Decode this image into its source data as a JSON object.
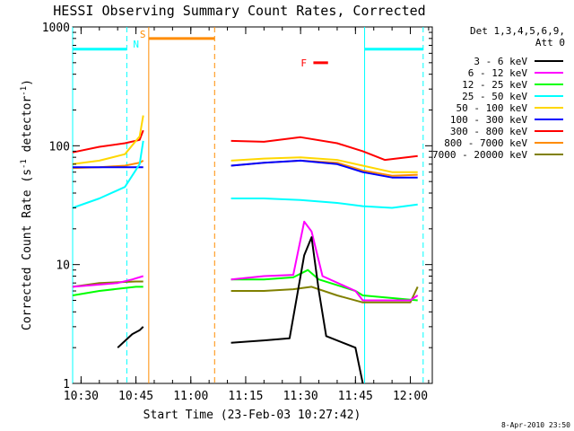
{
  "chart_data": {
    "type": "line",
    "title": "HESSI Observing Summary Count Rates, Corrected",
    "xlabel": "Start Time (23-Feb-03 10:27:42)",
    "ylabel_main": "Corrected Count Rate (s",
    "ylabel_sup1": "-1",
    "ylabel_mid": " detector",
    "ylabel_sup2": "-1",
    "ylabel_end": ")",
    "yscale": "log",
    "xlim": [
      "10:27:42",
      "12:06:00"
    ],
    "ylim": [
      1,
      1000
    ],
    "x_ticks": [
      "10:30",
      "10:45",
      "11:00",
      "11:15",
      "11:30",
      "11:45",
      "12:00"
    ],
    "y_ticks": [
      {
        "value": 1,
        "label": "1"
      },
      {
        "value": 10,
        "label": "10"
      },
      {
        "value": 100,
        "label": "100"
      },
      {
        "value": 1000,
        "label": "1000"
      }
    ],
    "legend_header": [
      "Det 1,3,4,5,6,9,",
      "Att 0"
    ],
    "legend_position": "right",
    "flag_labels": {
      "night": "N",
      "saa": "S",
      "flare": "F"
    },
    "series": [
      {
        "name": "3 - 6 keV",
        "color": "#000000",
        "points": [
          [
            "10:40",
            2
          ],
          [
            "10:44",
            2.6
          ],
          [
            "10:46",
            2.8
          ],
          [
            "10:47",
            3.0
          ],
          [
            "11:11",
            2.2
          ],
          [
            "11:20",
            2.3
          ],
          [
            "11:27",
            2.4
          ],
          [
            "11:31",
            12
          ],
          [
            "11:33",
            17
          ],
          [
            "11:35",
            6
          ],
          [
            "11:37",
            2.5
          ],
          [
            "11:45",
            2
          ],
          [
            "11:47",
            1
          ]
        ]
      },
      {
        "name": "6 - 12 keV",
        "color": "#ff00ff",
        "points": [
          [
            "10:27:42",
            6.5
          ],
          [
            "10:40",
            7
          ],
          [
            "10:44",
            7.5
          ],
          [
            "10:47",
            8.0
          ],
          [
            "11:11",
            7.5
          ],
          [
            "11:20",
            8.0
          ],
          [
            "11:28",
            8.2
          ],
          [
            "11:31",
            23
          ],
          [
            "11:33",
            19
          ],
          [
            "11:36",
            8
          ],
          [
            "11:45",
            6
          ],
          [
            "11:47",
            5
          ],
          [
            "12:00",
            5
          ],
          [
            "12:02",
            5.5
          ]
        ]
      },
      {
        "name": "12 - 25 keV",
        "color": "#00ff00",
        "points": [
          [
            "10:27:42",
            5.5
          ],
          [
            "10:35",
            6.0
          ],
          [
            "10:45",
            6.5
          ],
          [
            "10:47",
            6.5
          ],
          [
            "11:11",
            7.5
          ],
          [
            "11:20",
            7.5
          ],
          [
            "11:28",
            7.8
          ],
          [
            "11:32",
            9
          ],
          [
            "11:35",
            7.5
          ],
          [
            "11:45",
            6.0
          ],
          [
            "11:47",
            5.5
          ],
          [
            "12:02",
            5.0
          ]
        ]
      },
      {
        "name": "25 - 50 keV",
        "color": "#00ffff",
        "points": [
          [
            "10:27:42",
            30
          ],
          [
            "10:35",
            36
          ],
          [
            "10:42",
            45
          ],
          [
            "10:46",
            70
          ],
          [
            "10:47",
            110
          ],
          [
            "11:11",
            36
          ],
          [
            "11:20",
            36
          ],
          [
            "11:30",
            35
          ],
          [
            "11:40",
            33
          ],
          [
            "11:47",
            31
          ],
          [
            "11:55",
            30
          ],
          [
            "12:02",
            32
          ]
        ]
      },
      {
        "name": "50 - 100 keV",
        "color": "#ffd700",
        "points": [
          [
            "10:27:42",
            70
          ],
          [
            "10:35",
            75
          ],
          [
            "10:42",
            85
          ],
          [
            "10:46",
            120
          ],
          [
            "10:47",
            180
          ],
          [
            "11:11",
            75
          ],
          [
            "11:20",
            78
          ],
          [
            "11:30",
            80
          ],
          [
            "11:40",
            76
          ],
          [
            "11:47",
            68
          ],
          [
            "11:55",
            60
          ],
          [
            "12:02",
            60
          ]
        ]
      },
      {
        "name": "100 - 300 keV",
        "color": "#0000ff",
        "points": [
          [
            "10:27:42",
            66
          ],
          [
            "10:35",
            66
          ],
          [
            "10:42",
            66
          ],
          [
            "10:47",
            66
          ],
          [
            "11:11",
            68
          ],
          [
            "11:20",
            72
          ],
          [
            "11:30",
            75
          ],
          [
            "11:40",
            70
          ],
          [
            "11:47",
            60
          ],
          [
            "11:55",
            54
          ],
          [
            "12:02",
            54
          ]
        ]
      },
      {
        "name": "300 - 800 keV",
        "color": "#ff0000",
        "points": [
          [
            "10:27:42",
            88
          ],
          [
            "10:35",
            98
          ],
          [
            "10:42",
            105
          ],
          [
            "10:46",
            112
          ],
          [
            "10:47",
            135
          ],
          [
            "11:11",
            110
          ],
          [
            "11:20",
            108
          ],
          [
            "11:30",
            118
          ],
          [
            "11:40",
            105
          ],
          [
            "11:47",
            90
          ],
          [
            "11:53",
            76
          ],
          [
            "12:02",
            82
          ]
        ]
      },
      {
        "name": "800 - 7000 keV",
        "color": "#ff8c00",
        "points": [
          [
            "10:27:42",
            65
          ],
          [
            "10:35",
            66
          ],
          [
            "10:42",
            68
          ],
          [
            "10:46",
            72
          ],
          [
            "10:47",
            75
          ],
          [
            "11:11",
            68
          ],
          [
            "11:20",
            72
          ],
          [
            "11:30",
            75
          ],
          [
            "11:40",
            72
          ],
          [
            "11:47",
            62
          ],
          [
            "11:55",
            56
          ],
          [
            "12:02",
            57
          ]
        ]
      },
      {
        "name": "7000 - 20000 keV",
        "color": "#808000",
        "points": [
          [
            "10:27:42",
            6.5
          ],
          [
            "10:35",
            7.0
          ],
          [
            "10:45",
            7.2
          ],
          [
            "10:47",
            7.2
          ],
          [
            "11:11",
            6.0
          ],
          [
            "11:20",
            6.0
          ],
          [
            "11:28",
            6.2
          ],
          [
            "11:33",
            6.5
          ],
          [
            "11:40",
            5.5
          ],
          [
            "11:47",
            4.8
          ],
          [
            "12:00",
            4.8
          ],
          [
            "12:02",
            6.5
          ]
        ]
      }
    ],
    "night_markers": [
      {
        "time": "10:27:42",
        "style": "solid",
        "color": "#00ffff"
      },
      {
        "time": "10:42:30",
        "style": "dashed",
        "color": "#00ffff"
      },
      {
        "time": "11:47:30",
        "style": "solid",
        "color": "#00ffff"
      },
      {
        "time": "12:03:30",
        "style": "dashed",
        "color": "#00ffff"
      }
    ],
    "night_bars": [
      {
        "start": "10:27:42",
        "end": "10:42:30",
        "level": 650,
        "color": "#00ffff"
      },
      {
        "start": "11:47:30",
        "end": "12:03:30",
        "level": 650,
        "color": "#00ffff"
      }
    ],
    "saa_markers": [
      {
        "time": "10:48:30",
        "style": "solid",
        "color": "#ff8c00"
      },
      {
        "time": "11:06:30",
        "style": "dashed",
        "color": "#ff8c00"
      }
    ],
    "saa_bar": {
      "start": "10:48:30",
      "end": "11:06:30",
      "level": 800,
      "color": "#ff8c00"
    },
    "flare_bar": {
      "start": "11:33:30",
      "end": "11:37:30",
      "level": 500,
      "color": "#ff0000"
    },
    "footer_date": "8-Apr-2010 23:50"
  }
}
